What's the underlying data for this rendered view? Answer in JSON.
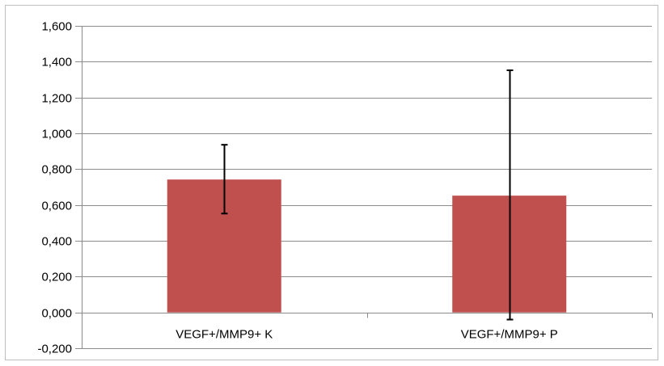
{
  "chart_data": {
    "type": "bar",
    "categories": [
      "VEGF+/MMP9+ K",
      "VEGF+/MMP9+ P"
    ],
    "series": [
      {
        "values": [
          0.742,
          0.652
        ],
        "error_low": [
          0.552,
          -0.04
        ],
        "error_high": [
          0.936,
          1.352
        ]
      }
    ],
    "ylim": [
      -0.2,
      1.6
    ],
    "yticks": [
      -0.2,
      0.0,
      0.2,
      0.4,
      0.6,
      0.8,
      1.0,
      1.2,
      1.4,
      1.6
    ],
    "ytick_labels": [
      "-0,200",
      "0,000",
      "0,200",
      "0,400",
      "0,600",
      "0,800",
      "1,000",
      "1,200",
      "1,400",
      "1,600"
    ],
    "grid": true,
    "legend": "none",
    "bar_color": "#c0504d",
    "grid_color": "#8c8c8c",
    "title": "",
    "xlabel": "",
    "ylabel": ""
  }
}
